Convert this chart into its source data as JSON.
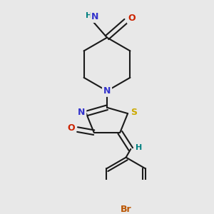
{
  "background_color": "#e8e8e8",
  "bond_color": "#1a1a1a",
  "atom_colors": {
    "N": "#3333cc",
    "O": "#cc2200",
    "S": "#ccaa00",
    "Br": "#bb5500",
    "H": "#008080",
    "C": "#1a1a1a"
  },
  "figsize": [
    3.0,
    3.0
  ],
  "dpi": 100
}
